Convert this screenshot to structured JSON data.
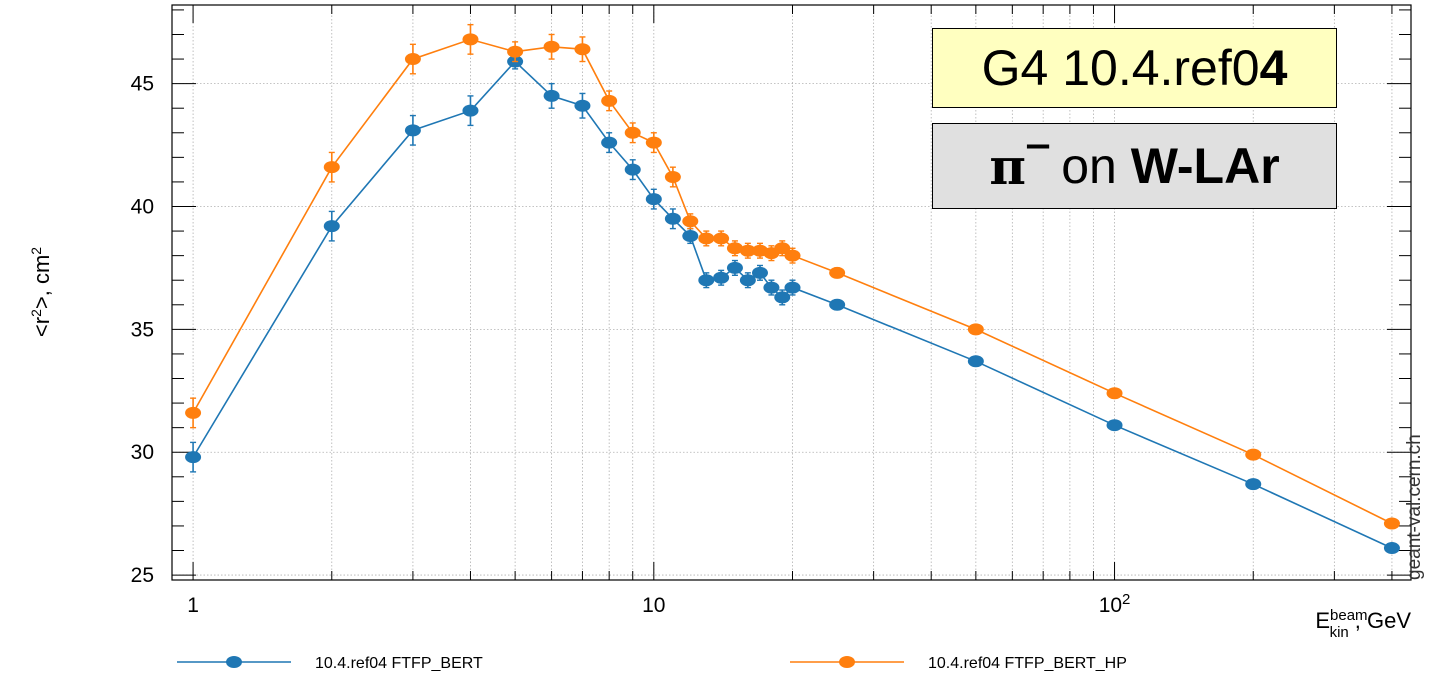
{
  "chart_data": {
    "type": "line",
    "xscale": "log",
    "xlim": [
      0.9,
      440
    ],
    "ylim": [
      24.8,
      48.2
    ],
    "yticks": [
      25,
      30,
      35,
      40,
      45
    ],
    "xticks": [
      "1",
      "10",
      "10^2"
    ],
    "ylabel": "<r2>, cm2",
    "xlabel": "E_kin^beam, GeV",
    "grid": true,
    "series": [
      {
        "name": "10.4.ref04 FTFP_BERT",
        "color": "#1f77b4",
        "x": [
          1,
          2,
          3,
          4,
          5,
          6,
          7,
          8,
          9,
          10,
          11,
          12,
          13,
          14,
          15,
          16,
          17,
          18,
          19,
          20,
          25,
          50,
          100,
          200,
          400
        ],
        "y": [
          29.8,
          39.2,
          43.1,
          43.9,
          45.9,
          44.5,
          44.1,
          42.6,
          41.5,
          40.3,
          39.5,
          38.8,
          37.0,
          37.1,
          37.5,
          37.0,
          37.3,
          36.7,
          36.3,
          36.7,
          36.0,
          33.7,
          31.1,
          28.7,
          26.1
        ],
        "err": [
          0.6,
          0.6,
          0.6,
          0.6,
          0.3,
          0.5,
          0.5,
          0.4,
          0.4,
          0.4,
          0.4,
          0.3,
          0.3,
          0.3,
          0.3,
          0.3,
          0.3,
          0.3,
          0.3,
          0.3,
          0.2,
          0.15,
          0.15,
          0.15,
          0.15
        ]
      },
      {
        "name": "10.4.ref04 FTFP_BERT_HP",
        "color": "#ff7f0e",
        "x": [
          1,
          2,
          3,
          4,
          5,
          6,
          7,
          8,
          9,
          10,
          11,
          12,
          13,
          14,
          15,
          16,
          17,
          18,
          19,
          20,
          25,
          50,
          100,
          200,
          400
        ],
        "y": [
          31.6,
          41.6,
          46.0,
          46.8,
          46.3,
          46.5,
          46.4,
          44.3,
          43.0,
          42.6,
          41.2,
          39.4,
          38.7,
          38.7,
          38.3,
          38.2,
          38.2,
          38.1,
          38.3,
          38.0,
          37.3,
          35.0,
          32.4,
          29.9,
          27.1
        ],
        "err": [
          0.6,
          0.6,
          0.6,
          0.6,
          0.4,
          0.5,
          0.5,
          0.4,
          0.4,
          0.4,
          0.4,
          0.3,
          0.3,
          0.3,
          0.3,
          0.3,
          0.3,
          0.3,
          0.3,
          0.3,
          0.2,
          0.15,
          0.15,
          0.15,
          0.15
        ]
      }
    ]
  },
  "annotations": {
    "version_prefix": "G4 10.4.ref0",
    "version_bold": "4",
    "particle": "π",
    "charge": "‒",
    "on_word": "on",
    "target": "W-LAr"
  },
  "watermark": "geant-val.cern.ch"
}
